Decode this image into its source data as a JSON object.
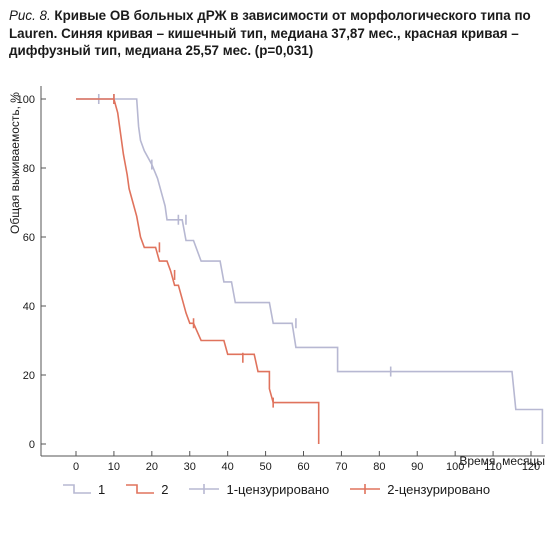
{
  "caption": {
    "fig_label": "Рис. 8.",
    "text": "Кривые ОВ больных дРЖ в зависимости от морфологического типа по Lauren. Синяя кривая – кишечный тип, медиана 37,87 мес., красная кривая – диффузный тип, медиана 25,57 мес. (p=0,031)"
  },
  "colors": {
    "series1": "#b7b8d2",
    "series2": "#e0735d",
    "axis": "#555555"
  },
  "chart_data": {
    "type": "line",
    "subtype": "kaplan-meier-step",
    "xlabel": "Время, месяцы",
    "ylabel": "Общая выживаемость, %",
    "xlim": [
      -4,
      124
    ],
    "ylim": [
      0,
      100
    ],
    "xticks": [
      0,
      10,
      20,
      30,
      40,
      50,
      60,
      70,
      80,
      90,
      100,
      110,
      120
    ],
    "yticks": [
      0,
      20,
      40,
      60,
      80,
      100
    ],
    "series": [
      {
        "name": "1",
        "color": "#b7b8d2",
        "points": [
          [
            0,
            100
          ],
          [
            16,
            100
          ],
          [
            16.5,
            92
          ],
          [
            17,
            88
          ],
          [
            18,
            85
          ],
          [
            20,
            81
          ],
          [
            21.5,
            77
          ],
          [
            22.5,
            73
          ],
          [
            23.5,
            69
          ],
          [
            24,
            65
          ],
          [
            28,
            65
          ],
          [
            29,
            59
          ],
          [
            31,
            59
          ],
          [
            33,
            53
          ],
          [
            38,
            53
          ],
          [
            39,
            47
          ],
          [
            41,
            47
          ],
          [
            42,
            41
          ],
          [
            51,
            41
          ],
          [
            52,
            35
          ],
          [
            57,
            35
          ],
          [
            58,
            28
          ],
          [
            69,
            28
          ],
          [
            69,
            21
          ],
          [
            115,
            21
          ],
          [
            116,
            10
          ],
          [
            123,
            10
          ],
          [
            123,
            0
          ]
        ],
        "censored": [
          [
            6,
            100
          ],
          [
            10,
            100
          ],
          [
            20,
            81
          ],
          [
            27,
            65
          ],
          [
            29,
            65
          ],
          [
            58,
            35
          ],
          [
            83,
            21
          ]
        ]
      },
      {
        "name": "2",
        "color": "#e0735d",
        "points": [
          [
            0,
            100
          ],
          [
            10,
            100
          ],
          [
            11,
            96
          ],
          [
            11.5,
            92
          ],
          [
            12,
            88
          ],
          [
            12.5,
            84
          ],
          [
            13,
            81
          ],
          [
            13.5,
            78
          ],
          [
            14,
            74
          ],
          [
            15,
            70
          ],
          [
            16,
            66
          ],
          [
            16.5,
            63
          ],
          [
            17,
            60
          ],
          [
            18,
            57
          ],
          [
            21,
            57
          ],
          [
            22,
            53
          ],
          [
            24,
            53
          ],
          [
            25,
            50
          ],
          [
            26,
            46
          ],
          [
            27,
            46
          ],
          [
            28,
            42
          ],
          [
            29,
            38
          ],
          [
            30,
            35
          ],
          [
            31,
            35
          ],
          [
            33,
            30
          ],
          [
            39,
            30
          ],
          [
            40,
            26
          ],
          [
            47,
            26
          ],
          [
            48,
            21
          ],
          [
            51,
            21
          ],
          [
            51,
            16
          ],
          [
            52,
            12
          ],
          [
            64,
            12
          ],
          [
            64,
            0
          ]
        ],
        "censored": [
          [
            10,
            100
          ],
          [
            22,
            57
          ],
          [
            26,
            49
          ],
          [
            31,
            35
          ],
          [
            44,
            25
          ],
          [
            52,
            12
          ]
        ]
      }
    ]
  },
  "legend": {
    "items": [
      {
        "label": "1",
        "kind": "line",
        "color": "#b7b8d2"
      },
      {
        "label": "2",
        "kind": "line",
        "color": "#e0735d"
      },
      {
        "label": "1-цензурировано",
        "kind": "censor",
        "color": "#b7b8d2"
      },
      {
        "label": "2-цензурировано",
        "kind": "censor",
        "color": "#e0735d"
      }
    ]
  }
}
